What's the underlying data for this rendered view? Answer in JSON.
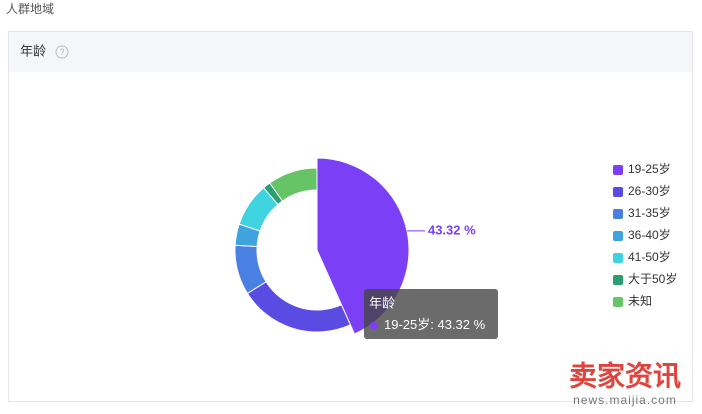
{
  "page": {
    "section": "人群地域",
    "watermark": "卖家资讯",
    "watermark_url": "news.maijia.com"
  },
  "chart_data": {
    "type": "donut",
    "title": "年龄",
    "categories": [
      "19-25岁",
      "26-30岁",
      "31-35岁",
      "36-40岁",
      "41-50岁",
      "大于50岁",
      "未知"
    ],
    "values": [
      43.32,
      22.8,
      9.8,
      4.2,
      8.6,
      1.5,
      9.78
    ],
    "value_labels": [
      "43.32 %",
      null,
      null,
      null,
      null,
      null,
      null
    ],
    "colors": [
      "#7b3ff5",
      "#5a4be2",
      "#4a80e2",
      "#3fa3e0",
      "#3fd3df",
      "#2a9d73",
      "#66c466"
    ],
    "highlight": 0,
    "legend": "right"
  }
}
